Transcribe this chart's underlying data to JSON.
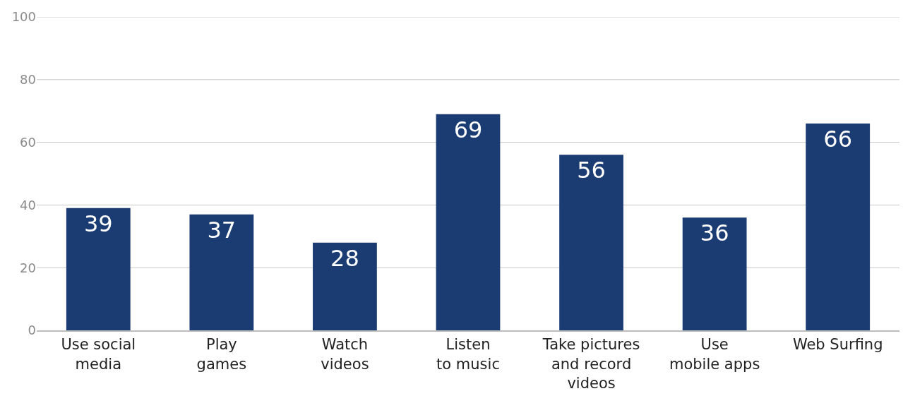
{
  "chart_data": {
    "type": "bar",
    "categories": [
      "Use social\nmedia",
      "Play\ngames",
      "Watch\nvideos",
      "Listen\nto music",
      "Take pictures\nand record\nvideos",
      "Use\nmobile apps",
      "Web Surfing"
    ],
    "values": [
      39,
      37,
      28,
      69,
      56,
      36,
      66
    ],
    "color": "#1b3c73",
    "ylim": [
      0,
      100
    ],
    "yticks": [
      0,
      20,
      40,
      60,
      80,
      100
    ],
    "grid": "y",
    "data_labels": true
  }
}
